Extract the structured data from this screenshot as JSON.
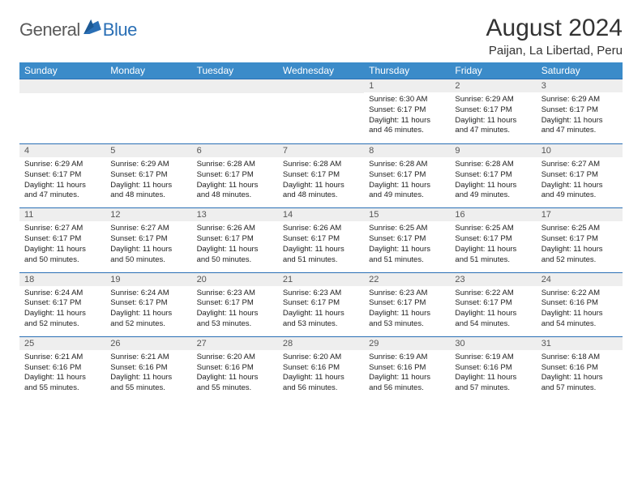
{
  "brand": {
    "general": "General",
    "blue": "Blue"
  },
  "title": "August 2024",
  "location": "Paijan, La Libertad, Peru",
  "colors": {
    "header_bg": "#3b8bc9",
    "header_text": "#ffffff",
    "row_border": "#2a6fb5",
    "daynum_bg": "#eeeeee",
    "body_bg": "#ffffff",
    "logo_blue": "#2a6fb5",
    "logo_gray": "#5a5a5a"
  },
  "day_headers": [
    "Sunday",
    "Monday",
    "Tuesday",
    "Wednesday",
    "Thursday",
    "Friday",
    "Saturday"
  ],
  "weeks": [
    [
      null,
      null,
      null,
      null,
      {
        "n": "1",
        "sr": "Sunrise: 6:30 AM",
        "ss": "Sunset: 6:17 PM",
        "dl": "Daylight: 11 hours and 46 minutes."
      },
      {
        "n": "2",
        "sr": "Sunrise: 6:29 AM",
        "ss": "Sunset: 6:17 PM",
        "dl": "Daylight: 11 hours and 47 minutes."
      },
      {
        "n": "3",
        "sr": "Sunrise: 6:29 AM",
        "ss": "Sunset: 6:17 PM",
        "dl": "Daylight: 11 hours and 47 minutes."
      }
    ],
    [
      {
        "n": "4",
        "sr": "Sunrise: 6:29 AM",
        "ss": "Sunset: 6:17 PM",
        "dl": "Daylight: 11 hours and 47 minutes."
      },
      {
        "n": "5",
        "sr": "Sunrise: 6:29 AM",
        "ss": "Sunset: 6:17 PM",
        "dl": "Daylight: 11 hours and 48 minutes."
      },
      {
        "n": "6",
        "sr": "Sunrise: 6:28 AM",
        "ss": "Sunset: 6:17 PM",
        "dl": "Daylight: 11 hours and 48 minutes."
      },
      {
        "n": "7",
        "sr": "Sunrise: 6:28 AM",
        "ss": "Sunset: 6:17 PM",
        "dl": "Daylight: 11 hours and 48 minutes."
      },
      {
        "n": "8",
        "sr": "Sunrise: 6:28 AM",
        "ss": "Sunset: 6:17 PM",
        "dl": "Daylight: 11 hours and 49 minutes."
      },
      {
        "n": "9",
        "sr": "Sunrise: 6:28 AM",
        "ss": "Sunset: 6:17 PM",
        "dl": "Daylight: 11 hours and 49 minutes."
      },
      {
        "n": "10",
        "sr": "Sunrise: 6:27 AM",
        "ss": "Sunset: 6:17 PM",
        "dl": "Daylight: 11 hours and 49 minutes."
      }
    ],
    [
      {
        "n": "11",
        "sr": "Sunrise: 6:27 AM",
        "ss": "Sunset: 6:17 PM",
        "dl": "Daylight: 11 hours and 50 minutes."
      },
      {
        "n": "12",
        "sr": "Sunrise: 6:27 AM",
        "ss": "Sunset: 6:17 PM",
        "dl": "Daylight: 11 hours and 50 minutes."
      },
      {
        "n": "13",
        "sr": "Sunrise: 6:26 AM",
        "ss": "Sunset: 6:17 PM",
        "dl": "Daylight: 11 hours and 50 minutes."
      },
      {
        "n": "14",
        "sr": "Sunrise: 6:26 AM",
        "ss": "Sunset: 6:17 PM",
        "dl": "Daylight: 11 hours and 51 minutes."
      },
      {
        "n": "15",
        "sr": "Sunrise: 6:25 AM",
        "ss": "Sunset: 6:17 PM",
        "dl": "Daylight: 11 hours and 51 minutes."
      },
      {
        "n": "16",
        "sr": "Sunrise: 6:25 AM",
        "ss": "Sunset: 6:17 PM",
        "dl": "Daylight: 11 hours and 51 minutes."
      },
      {
        "n": "17",
        "sr": "Sunrise: 6:25 AM",
        "ss": "Sunset: 6:17 PM",
        "dl": "Daylight: 11 hours and 52 minutes."
      }
    ],
    [
      {
        "n": "18",
        "sr": "Sunrise: 6:24 AM",
        "ss": "Sunset: 6:17 PM",
        "dl": "Daylight: 11 hours and 52 minutes."
      },
      {
        "n": "19",
        "sr": "Sunrise: 6:24 AM",
        "ss": "Sunset: 6:17 PM",
        "dl": "Daylight: 11 hours and 52 minutes."
      },
      {
        "n": "20",
        "sr": "Sunrise: 6:23 AM",
        "ss": "Sunset: 6:17 PM",
        "dl": "Daylight: 11 hours and 53 minutes."
      },
      {
        "n": "21",
        "sr": "Sunrise: 6:23 AM",
        "ss": "Sunset: 6:17 PM",
        "dl": "Daylight: 11 hours and 53 minutes."
      },
      {
        "n": "22",
        "sr": "Sunrise: 6:23 AM",
        "ss": "Sunset: 6:17 PM",
        "dl": "Daylight: 11 hours and 53 minutes."
      },
      {
        "n": "23",
        "sr": "Sunrise: 6:22 AM",
        "ss": "Sunset: 6:17 PM",
        "dl": "Daylight: 11 hours and 54 minutes."
      },
      {
        "n": "24",
        "sr": "Sunrise: 6:22 AM",
        "ss": "Sunset: 6:16 PM",
        "dl": "Daylight: 11 hours and 54 minutes."
      }
    ],
    [
      {
        "n": "25",
        "sr": "Sunrise: 6:21 AM",
        "ss": "Sunset: 6:16 PM",
        "dl": "Daylight: 11 hours and 55 minutes."
      },
      {
        "n": "26",
        "sr": "Sunrise: 6:21 AM",
        "ss": "Sunset: 6:16 PM",
        "dl": "Daylight: 11 hours and 55 minutes."
      },
      {
        "n": "27",
        "sr": "Sunrise: 6:20 AM",
        "ss": "Sunset: 6:16 PM",
        "dl": "Daylight: 11 hours and 55 minutes."
      },
      {
        "n": "28",
        "sr": "Sunrise: 6:20 AM",
        "ss": "Sunset: 6:16 PM",
        "dl": "Daylight: 11 hours and 56 minutes."
      },
      {
        "n": "29",
        "sr": "Sunrise: 6:19 AM",
        "ss": "Sunset: 6:16 PM",
        "dl": "Daylight: 11 hours and 56 minutes."
      },
      {
        "n": "30",
        "sr": "Sunrise: 6:19 AM",
        "ss": "Sunset: 6:16 PM",
        "dl": "Daylight: 11 hours and 57 minutes."
      },
      {
        "n": "31",
        "sr": "Sunrise: 6:18 AM",
        "ss": "Sunset: 6:16 PM",
        "dl": "Daylight: 11 hours and 57 minutes."
      }
    ]
  ]
}
